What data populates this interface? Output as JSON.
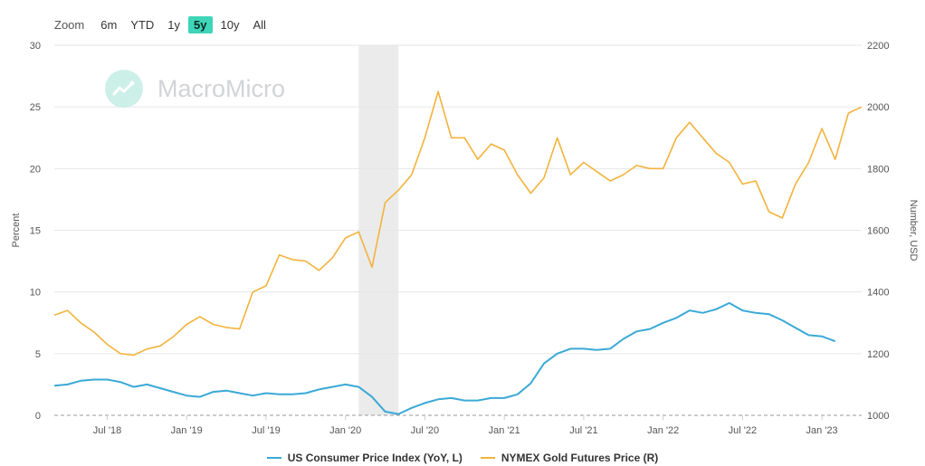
{
  "zoom": {
    "label": "Zoom",
    "options": [
      "6m",
      "YTD",
      "1y",
      "5y",
      "10y",
      "All"
    ],
    "selected": "5y"
  },
  "watermark": {
    "text": "MacroMicro"
  },
  "colors": {
    "cpi": "#3aa9d6",
    "gold": "#f2b33d",
    "recession": "#ebebeb",
    "zoom_active": "#3fd5b8"
  },
  "chart_data": {
    "type": "line",
    "x_start": "2018-03",
    "x_end": "2023-04",
    "x_tick_labels": [
      "Jul '18",
      "Jan '19",
      "Jul '19",
      "Jan '20",
      "Jul '20",
      "Jan '21",
      "Jul '21",
      "Jan '22",
      "Jul '22",
      "Jan '23"
    ],
    "shaded_period": [
      "2020-02",
      "2020-04"
    ],
    "left_axis": {
      "title": "Percent",
      "min": 0,
      "max": 30,
      "ticks": [
        0,
        5,
        10,
        15,
        20,
        25,
        30
      ]
    },
    "right_axis": {
      "title": "Number, USD",
      "min": 1000,
      "max": 2200,
      "ticks": [
        1000,
        1200,
        1400,
        1600,
        1800,
        2000,
        2200
      ]
    },
    "legend": [
      "US Consumer Price Index (YoY, L)",
      "NYMEX Gold Futures Price (R)"
    ],
    "series": [
      {
        "name": "US Consumer Price Index (YoY, L)",
        "axis": "left",
        "points": [
          [
            "2018-03",
            2.4
          ],
          [
            "2018-04",
            2.5
          ],
          [
            "2018-05",
            2.8
          ],
          [
            "2018-06",
            2.9
          ],
          [
            "2018-07",
            2.9
          ],
          [
            "2018-08",
            2.7
          ],
          [
            "2018-09",
            2.3
          ],
          [
            "2018-10",
            2.5
          ],
          [
            "2018-11",
            2.2
          ],
          [
            "2018-12",
            1.9
          ],
          [
            "2019-01",
            1.6
          ],
          [
            "2019-02",
            1.5
          ],
          [
            "2019-03",
            1.9
          ],
          [
            "2019-04",
            2.0
          ],
          [
            "2019-05",
            1.8
          ],
          [
            "2019-06",
            1.6
          ],
          [
            "2019-07",
            1.8
          ],
          [
            "2019-08",
            1.7
          ],
          [
            "2019-09",
            1.7
          ],
          [
            "2019-10",
            1.8
          ],
          [
            "2019-11",
            2.1
          ],
          [
            "2019-12",
            2.3
          ],
          [
            "2020-01",
            2.5
          ],
          [
            "2020-02",
            2.3
          ],
          [
            "2020-03",
            1.5
          ],
          [
            "2020-04",
            0.3
          ],
          [
            "2020-05",
            0.1
          ],
          [
            "2020-06",
            0.6
          ],
          [
            "2020-07",
            1.0
          ],
          [
            "2020-08",
            1.3
          ],
          [
            "2020-09",
            1.4
          ],
          [
            "2020-10",
            1.2
          ],
          [
            "2020-11",
            1.2
          ],
          [
            "2020-12",
            1.4
          ],
          [
            "2021-01",
            1.4
          ],
          [
            "2021-02",
            1.7
          ],
          [
            "2021-03",
            2.6
          ],
          [
            "2021-04",
            4.2
          ],
          [
            "2021-05",
            5.0
          ],
          [
            "2021-06",
            5.4
          ],
          [
            "2021-07",
            5.4
          ],
          [
            "2021-08",
            5.3
          ],
          [
            "2021-09",
            5.4
          ],
          [
            "2021-10",
            6.2
          ],
          [
            "2021-11",
            6.8
          ],
          [
            "2021-12",
            7.0
          ],
          [
            "2022-01",
            7.5
          ],
          [
            "2022-02",
            7.9
          ],
          [
            "2022-03",
            8.5
          ],
          [
            "2022-04",
            8.3
          ],
          [
            "2022-05",
            8.6
          ],
          [
            "2022-06",
            9.1
          ],
          [
            "2022-07",
            8.5
          ],
          [
            "2022-08",
            8.3
          ],
          [
            "2022-09",
            8.2
          ],
          [
            "2022-10",
            7.7
          ],
          [
            "2022-11",
            7.1
          ],
          [
            "2022-12",
            6.5
          ],
          [
            "2023-01",
            6.4
          ],
          [
            "2023-02",
            6.0
          ]
        ]
      },
      {
        "name": "NYMEX Gold Futures Price (R)",
        "axis": "right",
        "points": [
          [
            "2018-03",
            1325
          ],
          [
            "2018-04",
            1340
          ],
          [
            "2018-05",
            1300
          ],
          [
            "2018-06",
            1270
          ],
          [
            "2018-07",
            1230
          ],
          [
            "2018-08",
            1200
          ],
          [
            "2018-09",
            1195
          ],
          [
            "2018-10",
            1215
          ],
          [
            "2018-11",
            1225
          ],
          [
            "2018-12",
            1255
          ],
          [
            "2019-01",
            1295
          ],
          [
            "2019-02",
            1320
          ],
          [
            "2019-03",
            1295
          ],
          [
            "2019-04",
            1285
          ],
          [
            "2019-05",
            1280
          ],
          [
            "2019-06",
            1400
          ],
          [
            "2019-07",
            1420
          ],
          [
            "2019-08",
            1520
          ],
          [
            "2019-09",
            1505
          ],
          [
            "2019-10",
            1500
          ],
          [
            "2019-11",
            1470
          ],
          [
            "2019-12",
            1510
          ],
          [
            "2020-01",
            1575
          ],
          [
            "2020-02",
            1595
          ],
          [
            "2020-03",
            1480
          ],
          [
            "2020-04",
            1690
          ],
          [
            "2020-05",
            1730
          ],
          [
            "2020-06",
            1780
          ],
          [
            "2020-07",
            1900
          ],
          [
            "2020-08",
            2050
          ],
          [
            "2020-09",
            1900
          ],
          [
            "2020-10",
            1900
          ],
          [
            "2020-11",
            1830
          ],
          [
            "2020-12",
            1880
          ],
          [
            "2021-01",
            1860
          ],
          [
            "2021-02",
            1780
          ],
          [
            "2021-03",
            1720
          ],
          [
            "2021-04",
            1770
          ],
          [
            "2021-05",
            1900
          ],
          [
            "2021-06",
            1780
          ],
          [
            "2021-07",
            1820
          ],
          [
            "2021-08",
            1790
          ],
          [
            "2021-09",
            1760
          ],
          [
            "2021-10",
            1780
          ],
          [
            "2021-11",
            1810
          ],
          [
            "2021-12",
            1800
          ],
          [
            "2022-01",
            1800
          ],
          [
            "2022-02",
            1900
          ],
          [
            "2022-03",
            1950
          ],
          [
            "2022-04",
            1900
          ],
          [
            "2022-05",
            1850
          ],
          [
            "2022-06",
            1820
          ],
          [
            "2022-07",
            1750
          ],
          [
            "2022-08",
            1760
          ],
          [
            "2022-09",
            1660
          ],
          [
            "2022-10",
            1640
          ],
          [
            "2022-11",
            1750
          ],
          [
            "2022-12",
            1820
          ],
          [
            "2023-01",
            1930
          ],
          [
            "2023-02",
            1830
          ],
          [
            "2023-03",
            1980
          ],
          [
            "2023-04",
            2000
          ]
        ]
      }
    ],
    "grid": true,
    "legend_position": "bottom"
  }
}
